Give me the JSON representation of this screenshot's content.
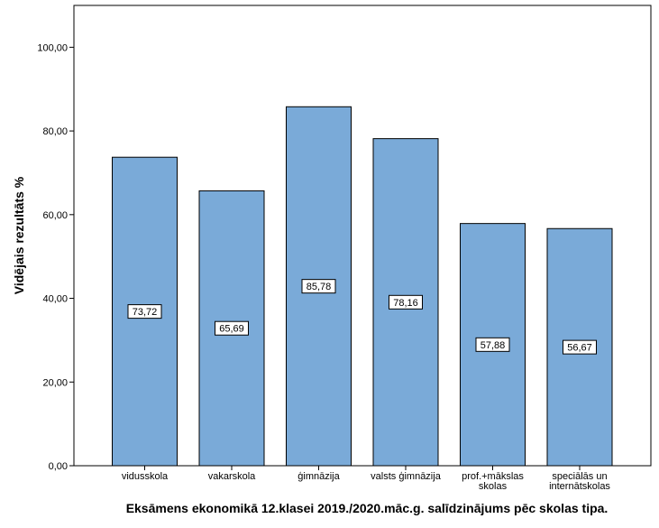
{
  "chart_data": {
    "type": "bar",
    "categories": [
      [
        "vidusskola"
      ],
      [
        "vakarskola"
      ],
      [
        "ģimnāzija"
      ],
      [
        "valsts ģimnāzija"
      ],
      [
        "prof.+mākslas",
        "skolas"
      ],
      [
        "speciālās un",
        "internātskolas"
      ]
    ],
    "values": [
      73.72,
      65.69,
      85.78,
      78.16,
      57.88,
      56.67
    ],
    "data_labels": [
      "73,72",
      "65,69",
      "85,78",
      "78,16",
      "57,88",
      "56,67"
    ],
    "ylabel": "Vidējais rezultāts %",
    "xlabel": "Eksāmens ekonomikā 12.klasei 2019./2020.māc.g. salīdzinājums pēc skolas tipa.",
    "ylim": [
      0,
      110
    ],
    "yticks": [
      0,
      20,
      40,
      60,
      80,
      100
    ],
    "ytick_labels": [
      "0,00",
      "20,00",
      "40,00",
      "60,00",
      "80,00",
      "100,00"
    ],
    "bar_color": "#7aaad8",
    "grid": false
  }
}
